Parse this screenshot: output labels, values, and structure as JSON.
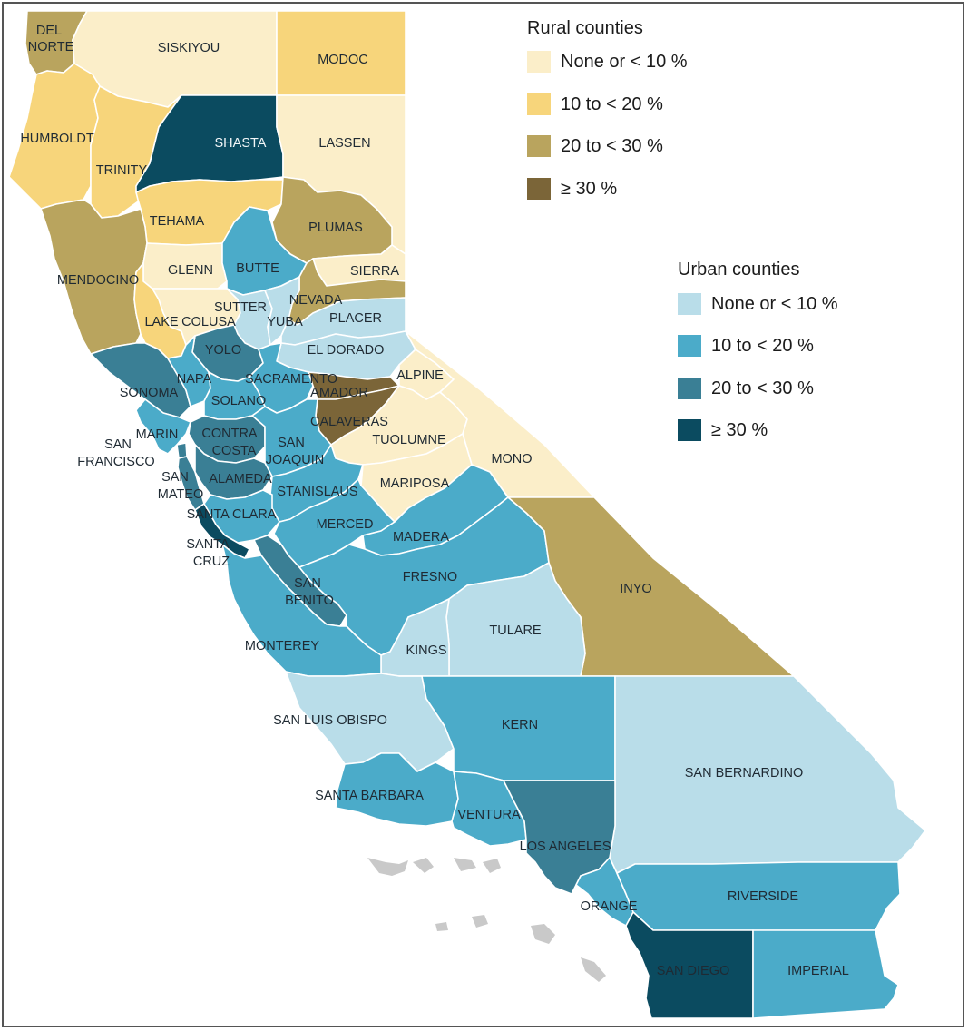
{
  "colors": {
    "rural_lt10": "#fbeec9",
    "rural_10_20": "#f7d57b",
    "rural_20_30": "#b9a45e",
    "rural_ge30": "#7b6538",
    "urban_lt10": "#b9dde9",
    "urban_10_20": "#4babc9",
    "urban_20_30": "#3a7f95",
    "urban_ge30": "#0b4b60",
    "island": "#c9c9c9"
  },
  "legend": {
    "rural": {
      "title": "Rural counties",
      "items": [
        {
          "label": "None or < 10 %",
          "color": "#fbeec9"
        },
        {
          "label": "10 to < 20 %",
          "color": "#f7d57b"
        },
        {
          "label": "20 to < 30 %",
          "color": "#b9a45e"
        },
        {
          "label": "≥ 30 %",
          "color": "#7b6538"
        }
      ]
    },
    "urban": {
      "title": "Urban counties",
      "items": [
        {
          "label": "None or < 10 %",
          "color": "#b9dde9"
        },
        {
          "label": "10 to < 20 %",
          "color": "#4babc9"
        },
        {
          "label": "20 to < 30 %",
          "color": "#3a7f95"
        },
        {
          "label": "≥ 30 %",
          "color": "#0b4b60"
        }
      ]
    }
  },
  "counties": [
    {
      "name": "DEL NORTE",
      "type": "rural",
      "category": "20 to < 30 %"
    },
    {
      "name": "SISKIYOU",
      "type": "rural",
      "category": "None or < 10 %"
    },
    {
      "name": "MODOC",
      "type": "rural",
      "category": "10 to < 20 %"
    },
    {
      "name": "HUMBOLDT",
      "type": "rural",
      "category": "10 to < 20 %"
    },
    {
      "name": "TRINITY",
      "type": "rural",
      "category": "10 to < 20 %"
    },
    {
      "name": "SHASTA",
      "type": "urban",
      "category": "≥ 30 %"
    },
    {
      "name": "LASSEN",
      "type": "rural",
      "category": "None or < 10 %"
    },
    {
      "name": "TEHAMA",
      "type": "rural",
      "category": "10 to < 20 %"
    },
    {
      "name": "PLUMAS",
      "type": "rural",
      "category": "20 to < 30 %"
    },
    {
      "name": "MENDOCINO",
      "type": "rural",
      "category": "20 to < 30 %"
    },
    {
      "name": "GLENN",
      "type": "rural",
      "category": "None or < 10 %"
    },
    {
      "name": "BUTTE",
      "type": "urban",
      "category": "10 to < 20 %"
    },
    {
      "name": "SIERRA",
      "type": "rural",
      "category": "None or < 10 %"
    },
    {
      "name": "NEVADA",
      "type": "rural",
      "category": "20 to < 30 %"
    },
    {
      "name": "LAKE",
      "type": "rural",
      "category": "10 to < 20 %"
    },
    {
      "name": "COLUSA",
      "type": "rural",
      "category": "None or < 10 %"
    },
    {
      "name": "SUTTER",
      "type": "urban",
      "category": "None or < 10 %"
    },
    {
      "name": "YUBA",
      "type": "urban",
      "category": "None or < 10 %"
    },
    {
      "name": "PLACER",
      "type": "urban",
      "category": "None or < 10 %"
    },
    {
      "name": "EL DORADO",
      "type": "urban",
      "category": "None or < 10 %"
    },
    {
      "name": "YOLO",
      "type": "urban",
      "category": "20 to < 30 %"
    },
    {
      "name": "SONOMA",
      "type": "urban",
      "category": "20 to < 30 %"
    },
    {
      "name": "NAPA",
      "type": "urban",
      "category": "10 to < 20 %"
    },
    {
      "name": "SACRAMENTO",
      "type": "urban",
      "category": "10 to < 20 %"
    },
    {
      "name": "SOLANO",
      "type": "urban",
      "category": "10 to < 20 %"
    },
    {
      "name": "ALPINE",
      "type": "rural",
      "category": "None or < 10 %"
    },
    {
      "name": "AMADOR",
      "type": "rural",
      "category": "≥ 30 %"
    },
    {
      "name": "CALAVERAS",
      "type": "rural",
      "category": "≥ 30 %"
    },
    {
      "name": "MARIN",
      "type": "urban",
      "category": "10 to < 20 %"
    },
    {
      "name": "CONTRA COSTA",
      "type": "urban",
      "category": "20 to < 30 %"
    },
    {
      "name": "SAN JOAQUIN",
      "type": "urban",
      "category": "10 to < 20 %"
    },
    {
      "name": "TUOLUMNE",
      "type": "rural",
      "category": "None or < 10 %"
    },
    {
      "name": "MONO",
      "type": "rural",
      "category": "None or < 10 %"
    },
    {
      "name": "SAN FRANCISCO",
      "type": "urban",
      "category": "20 to < 30 %"
    },
    {
      "name": "SAN MATEO",
      "type": "urban",
      "category": "20 to < 30 %"
    },
    {
      "name": "ALAMEDA",
      "type": "urban",
      "category": "20 to < 30 %"
    },
    {
      "name": "STANISLAUS",
      "type": "urban",
      "category": "10 to < 20 %"
    },
    {
      "name": "MARIPOSA",
      "type": "rural",
      "category": "None or < 10 %"
    },
    {
      "name": "SANTA CLARA",
      "type": "urban",
      "category": "10 to < 20 %"
    },
    {
      "name": "MERCED",
      "type": "urban",
      "category": "10 to < 20 %"
    },
    {
      "name": "MADERA",
      "type": "urban",
      "category": "10 to < 20 %"
    },
    {
      "name": "SANTA CRUZ",
      "type": "urban",
      "category": "≥ 30 %"
    },
    {
      "name": "SAN BENITO",
      "type": "urban",
      "category": "20 to < 30 %"
    },
    {
      "name": "FRESNO",
      "type": "urban",
      "category": "10 to < 20 %"
    },
    {
      "name": "INYO",
      "type": "rural",
      "category": "20 to < 30 %"
    },
    {
      "name": "TULARE",
      "type": "urban",
      "category": "None or < 10 %"
    },
    {
      "name": "KINGS",
      "type": "urban",
      "category": "None or < 10 %"
    },
    {
      "name": "MONTEREY",
      "type": "urban",
      "category": "10 to < 20 %"
    },
    {
      "name": "SAN LUIS OBISPO",
      "type": "urban",
      "category": "None or < 10 %"
    },
    {
      "name": "KERN",
      "type": "urban",
      "category": "10 to < 20 %"
    },
    {
      "name": "SAN BERNARDINO",
      "type": "urban",
      "category": "None or < 10 %"
    },
    {
      "name": "SANTA BARBARA",
      "type": "urban",
      "category": "10 to < 20 %"
    },
    {
      "name": "VENTURA",
      "type": "urban",
      "category": "10 to < 20 %"
    },
    {
      "name": "LOS ANGELES",
      "type": "urban",
      "category": "20 to < 30 %"
    },
    {
      "name": "ORANGE",
      "type": "urban",
      "category": "10 to < 20 %"
    },
    {
      "name": "RIVERSIDE",
      "type": "urban",
      "category": "10 to < 20 %"
    },
    {
      "name": "SAN DIEGO",
      "type": "urban",
      "category": "≥ 30 %"
    },
    {
      "name": "IMPERIAL",
      "type": "urban",
      "category": "10 to < 20 %"
    }
  ],
  "labels": {
    "del_norte_1": "DEL",
    "del_norte_2": "NORTE",
    "siskiyou": "SISKIYOU",
    "modoc": "MODOC",
    "humboldt": "HUMBOLDT",
    "trinity": "TRINITY",
    "shasta": "SHASTA",
    "lassen": "LASSEN",
    "tehama": "TEHAMA",
    "plumas": "PLUMAS",
    "mendocino": "MENDOCINO",
    "glenn": "GLENN",
    "butte": "BUTTE",
    "sierra": "SIERRA",
    "nevada": "NEVADA",
    "lake": "LAKE",
    "colusa": "COLUSA",
    "sutter": "SUTTER",
    "yuba": "YUBA",
    "placer": "PLACER",
    "el_dorado": "EL DORADO",
    "yolo": "YOLO",
    "sonoma": "SONOMA",
    "napa": "NAPA",
    "sacramento": "SACRAMENTO",
    "solano": "SOLANO",
    "alpine": "ALPINE",
    "amador": "AMADOR",
    "calaveras": "CALAVERAS",
    "marin": "MARIN",
    "contra_1": "CONTRA",
    "contra_2": "COSTA",
    "san_joaquin_1": "SAN",
    "san_joaquin_2": "JOAQUIN",
    "tuolumne": "TUOLUMNE",
    "mono": "MONO",
    "sf_1": "SAN",
    "sf_2": "FRANCISCO",
    "san_mateo_1": "SAN",
    "san_mateo_2": "MATEO",
    "alameda": "ALAMEDA",
    "stanislaus": "STANISLAUS",
    "mariposa": "MARIPOSA",
    "santa_clara": "SANTA CLARA",
    "merced": "MERCED",
    "madera": "MADERA",
    "santa_cruz_1": "SANTA",
    "santa_cruz_2": "CRUZ",
    "san_benito_1": "SAN",
    "san_benito_2": "BENITO",
    "fresno": "FRESNO",
    "inyo": "INYO",
    "tulare": "TULARE",
    "kings": "KINGS",
    "monterey": "MONTEREY",
    "slo": "SAN LUIS OBISPO",
    "kern": "KERN",
    "san_bernardino": "SAN BERNARDINO",
    "santa_barbara": "SANTA BARBARA",
    "ventura": "VENTURA",
    "los_angeles": "LOS ANGELES",
    "orange": "ORANGE",
    "riverside": "RIVERSIDE",
    "san_diego": "SAN DIEGO",
    "imperial": "IMPERIAL"
  }
}
